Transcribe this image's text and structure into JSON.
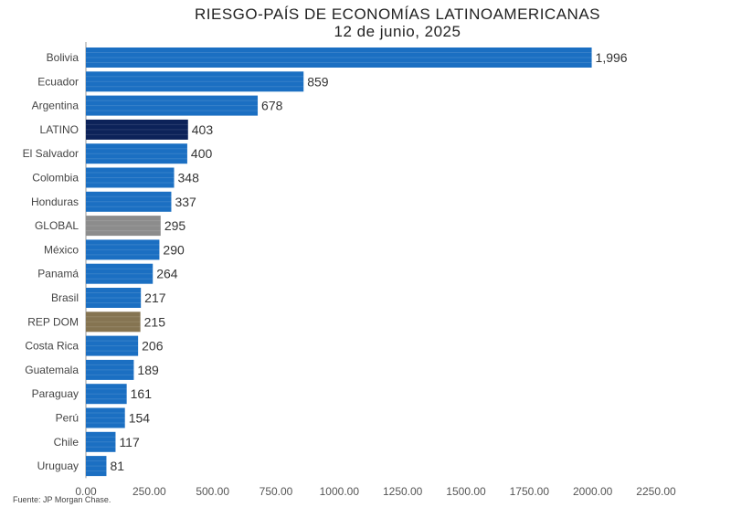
{
  "title": "RIESGO-PAÍS DE ECONOMÍAS LATINOAMERICANAS",
  "subtitle": "12 de junio, 2025",
  "source": "Fuente: JP Morgan Chase.",
  "colors": {
    "default": "#1b6fc2",
    "latino": "#0c2259",
    "global": "#8c8c8c",
    "repdom": "#857451"
  },
  "chart_data": {
    "type": "bar",
    "orientation": "horizontal",
    "categories": [
      "Bolivia",
      "Ecuador",
      "Argentina",
      "LATINO",
      "El Salvador",
      "Colombia",
      "Honduras",
      "GLOBAL",
      "México",
      "Panamá",
      "Brasil",
      "REP DOM",
      "Costa Rica",
      "Guatemala",
      "Paraguay",
      "Perú",
      "Chile",
      "Uruguay"
    ],
    "values": [
      1996,
      859,
      678,
      403,
      400,
      348,
      337,
      295,
      290,
      264,
      217,
      215,
      206,
      189,
      161,
      154,
      117,
      81
    ],
    "value_labels": [
      "1,996",
      "859",
      "678",
      "403",
      "400",
      "348",
      "337",
      "295",
      "290",
      "264",
      "217",
      "215",
      "206",
      "189",
      "161",
      "154",
      "117",
      "81"
    ],
    "highlight": {
      "LATINO": "latino",
      "GLOBAL": "global",
      "REP DOM": "repdom"
    },
    "xlim": [
      0,
      2250
    ],
    "xticks": [
      0,
      250,
      500,
      750,
      1000,
      1250,
      1500,
      1750,
      2000,
      2250
    ],
    "xtick_labels": [
      "0.00",
      "250.00",
      "500.00",
      "750.00",
      "1000.00",
      "1250.00",
      "1500.00",
      "1750.00",
      "2000.00",
      "2250.00"
    ],
    "grid": false,
    "legend": "none"
  }
}
